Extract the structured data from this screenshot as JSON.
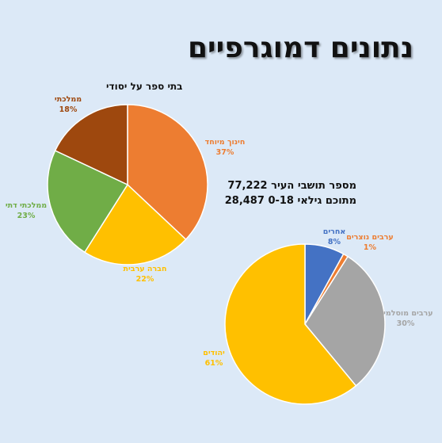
{
  "page_title": "נתונים דמוגרפיים",
  "population": {
    "total_line": "מספר תושבי העיר 77,222",
    "youth_line": "מתוכם גילאי 0-18 28,487"
  },
  "chart_data": [
    {
      "type": "pie",
      "title": "בתי ספר על יסודי",
      "slices": [
        {
          "label": "חינוך מיוחד",
          "value": 37,
          "value_label": "37%",
          "color": "#ed7d31"
        },
        {
          "label": "חברה ערבית",
          "value": 22,
          "value_label": "22%",
          "color": "#ffc000"
        },
        {
          "label": "ממלכתי דתי",
          "value": 23,
          "value_label": "23%",
          "color": "#70ad47"
        },
        {
          "label": "ממלכתי",
          "value": 18,
          "value_label": "18%",
          "color": "#9e480e"
        }
      ]
    },
    {
      "type": "pie",
      "title": "",
      "slices": [
        {
          "label": "אחרים",
          "value": 8,
          "value_label": "8%",
          "color": "#4472c4"
        },
        {
          "label": "ערבים נוצרים",
          "value": 1,
          "value_label": "1%",
          "color": "#ed7d31"
        },
        {
          "label": "ערבים מוסלמים",
          "value": 30,
          "value_label": "30%",
          "color": "#a5a5a5"
        },
        {
          "label": "יהודים",
          "value": 61,
          "value_label": "61%",
          "color": "#ffc000"
        }
      ]
    }
  ]
}
